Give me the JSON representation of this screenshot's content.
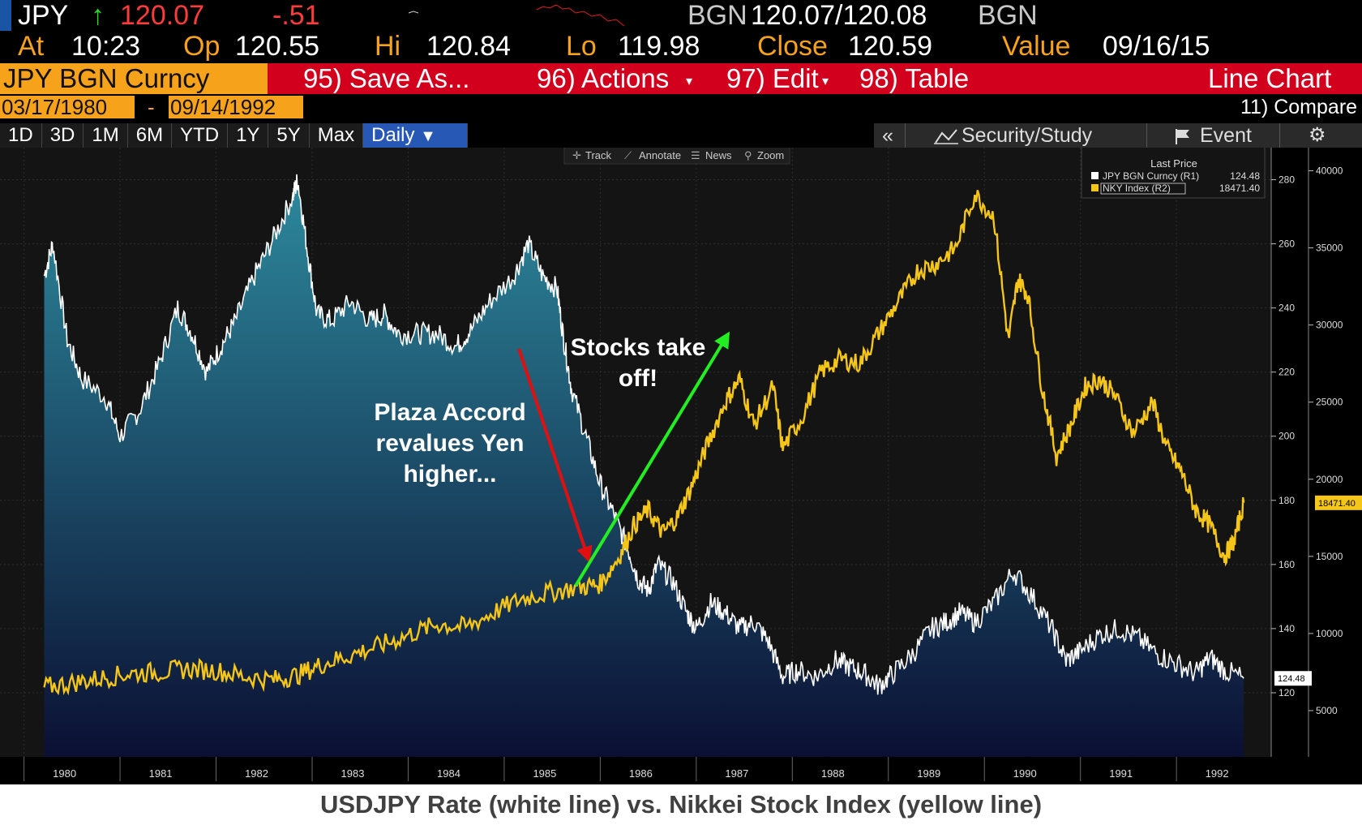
{
  "header": {
    "ticker": "JPY",
    "arrow": "↑",
    "last": "120.07",
    "change": "-.51",
    "bgn_label": "BGN",
    "bid_ask": "120.07/120.08",
    "bgn_label2": "BGN",
    "at_label": "At",
    "at_time": "10:23",
    "op_label": "Op",
    "op_value": "120.55",
    "hi_label": "Hi",
    "hi_value": "120.84",
    "lo_label": "Lo",
    "lo_value": "119.98",
    "close_label": "Close",
    "close_value": "120.59",
    "value_label": "Value",
    "value_date": "09/16/15"
  },
  "toolbar": {
    "security": "JPY BGN Curncy",
    "save_as": "95) Save As...",
    "actions": "96) Actions",
    "edit": "97) Edit",
    "table": "98) Table",
    "chart_type": "Line Chart"
  },
  "range": {
    "start": "03/17/1980",
    "dash": "-",
    "end": "09/14/1992",
    "compare": "11) Compare"
  },
  "tabs": [
    "1D",
    "3D",
    "1M",
    "6M",
    "YTD",
    "1Y",
    "5Y",
    "Max"
  ],
  "period": "Daily",
  "panel": {
    "collapse": "«",
    "security_study": "Security/Study",
    "event": "Event"
  },
  "tools": {
    "track": "Track",
    "annotate": "Annotate",
    "news": "News",
    "zoom": "Zoom"
  },
  "legend": {
    "title": "Last Price",
    "items": [
      {
        "name": "JPY BGN Curncy  (R1)",
        "value": "124.48",
        "color": "#ffffff"
      },
      {
        "name": "NKY Index  (R2)",
        "value": "18471.40",
        "color": "#f5c518"
      }
    ]
  },
  "annotations": {
    "plaza": [
      "Plaza Accord",
      "revalues Yen",
      "higher..."
    ],
    "stocks": [
      "Stocks take",
      "off!"
    ]
  },
  "caption": "USDJPY Rate (white line) vs. Nikkei Stock Index (yellow line)",
  "colors": {
    "jpy_line": "#ffffff",
    "nky_line": "#f5c518",
    "area_top": "#2d8a9e",
    "area_bottom": "#0b1033",
    "plaza_arrow": "#e01010",
    "stocks_arrow": "#22ee22"
  },
  "chart_data": {
    "type": "line",
    "x_ticks": [
      "1980",
      "1981",
      "1982",
      "1983",
      "1984",
      "1985",
      "1986",
      "1987",
      "1988",
      "1989",
      "1990",
      "1991",
      "1992"
    ],
    "r1_ticks": [
      "280",
      "260",
      "240",
      "220",
      "200",
      "180",
      "160",
      "140",
      "120"
    ],
    "r2_ticks": [
      "40000",
      "35000",
      "30000",
      "25000",
      "20000",
      "15000",
      "10000",
      "5000"
    ],
    "r1_range": [
      100,
      290
    ],
    "r2_range": [
      2000,
      41500
    ],
    "last_labels": {
      "jpy": "124.48",
      "nky": "18471.40"
    },
    "series": [
      {
        "name": "JPY BGN Curncy",
        "axis": "R1",
        "points": [
          [
            1980.21,
            250
          ],
          [
            1980.3,
            260
          ],
          [
            1980.45,
            230
          ],
          [
            1980.6,
            218
          ],
          [
            1980.85,
            212
          ],
          [
            1981.0,
            200
          ],
          [
            1981.2,
            208
          ],
          [
            1981.4,
            222
          ],
          [
            1981.6,
            240
          ],
          [
            1981.75,
            232
          ],
          [
            1981.9,
            220
          ],
          [
            1982.05,
            228
          ],
          [
            1982.2,
            236
          ],
          [
            1982.4,
            250
          ],
          [
            1982.6,
            262
          ],
          [
            1982.8,
            275
          ],
          [
            1982.85,
            280
          ],
          [
            1982.95,
            258
          ],
          [
            1983.05,
            238
          ],
          [
            1983.2,
            236
          ],
          [
            1983.4,
            242
          ],
          [
            1983.6,
            236
          ],
          [
            1983.75,
            238
          ],
          [
            1983.9,
            232
          ],
          [
            1984.1,
            232
          ],
          [
            1984.3,
            232
          ],
          [
            1984.5,
            228
          ],
          [
            1984.65,
            233
          ],
          [
            1984.85,
            242
          ],
          [
            1985.1,
            250
          ],
          [
            1985.25,
            260
          ],
          [
            1985.4,
            250
          ],
          [
            1985.55,
            246
          ],
          [
            1985.62,
            230
          ],
          [
            1985.7,
            215
          ],
          [
            1985.85,
            200
          ],
          [
            1986.0,
            185
          ],
          [
            1986.15,
            175
          ],
          [
            1986.3,
            164
          ],
          [
            1986.4,
            155
          ],
          [
            1986.5,
            152
          ],
          [
            1986.6,
            160
          ],
          [
            1986.75,
            155
          ],
          [
            1986.9,
            145
          ],
          [
            1987.0,
            140
          ],
          [
            1987.15,
            148
          ],
          [
            1987.3,
            145
          ],
          [
            1987.45,
            140
          ],
          [
            1987.6,
            142
          ],
          [
            1987.75,
            136
          ],
          [
            1987.9,
            125
          ],
          [
            1988.05,
            127
          ],
          [
            1988.25,
            125
          ],
          [
            1988.45,
            130
          ],
          [
            1988.6,
            128
          ],
          [
            1988.75,
            126
          ],
          [
            1988.9,
            122
          ],
          [
            1989.05,
            126
          ],
          [
            1989.25,
            132
          ],
          [
            1989.45,
            140
          ],
          [
            1989.6,
            142
          ],
          [
            1989.75,
            145
          ],
          [
            1989.9,
            142
          ],
          [
            1990.1,
            148
          ],
          [
            1990.3,
            158
          ],
          [
            1990.5,
            150
          ],
          [
            1990.7,
            140
          ],
          [
            1990.85,
            130
          ],
          [
            1991.0,
            133
          ],
          [
            1991.2,
            138
          ],
          [
            1991.4,
            140
          ],
          [
            1991.6,
            137
          ],
          [
            1991.8,
            132
          ],
          [
            1992.0,
            129
          ],
          [
            1992.2,
            126
          ],
          [
            1992.35,
            131
          ],
          [
            1992.5,
            127
          ],
          [
            1992.7,
            124.48
          ]
        ]
      },
      {
        "name": "NKY Index",
        "axis": "R2",
        "points": [
          [
            1980.21,
            6500
          ],
          [
            1980.5,
            6800
          ],
          [
            1980.8,
            7100
          ],
          [
            1981.1,
            7400
          ],
          [
            1981.4,
            7500
          ],
          [
            1981.7,
            7700
          ],
          [
            1982.0,
            7600
          ],
          [
            1982.3,
            7200
          ],
          [
            1982.6,
            7000
          ],
          [
            1982.85,
            7300
          ],
          [
            1983.1,
            8000
          ],
          [
            1983.4,
            8600
          ],
          [
            1983.7,
            9200
          ],
          [
            1984.0,
            9900
          ],
          [
            1984.3,
            10600
          ],
          [
            1984.6,
            10400
          ],
          [
            1984.9,
            11400
          ],
          [
            1985.2,
            12300
          ],
          [
            1985.5,
            12700
          ],
          [
            1985.8,
            13000
          ],
          [
            1986.0,
            13200
          ],
          [
            1986.2,
            15000
          ],
          [
            1986.35,
            17000
          ],
          [
            1986.5,
            18000
          ],
          [
            1986.65,
            16500
          ],
          [
            1986.8,
            17500
          ],
          [
            1986.95,
            19500
          ],
          [
            1987.1,
            22000
          ],
          [
            1987.3,
            25000
          ],
          [
            1987.45,
            26500
          ],
          [
            1987.6,
            23500
          ],
          [
            1987.8,
            26000
          ],
          [
            1987.9,
            22000
          ],
          [
            1988.1,
            24000
          ],
          [
            1988.3,
            27000
          ],
          [
            1988.5,
            27800
          ],
          [
            1988.7,
            27500
          ],
          [
            1988.9,
            29500
          ],
          [
            1989.1,
            31500
          ],
          [
            1989.3,
            33500
          ],
          [
            1989.5,
            34000
          ],
          [
            1989.7,
            35000
          ],
          [
            1989.9,
            38500
          ],
          [
            1990.1,
            37000
          ],
          [
            1990.25,
            29000
          ],
          [
            1990.35,
            33000
          ],
          [
            1990.45,
            32000
          ],
          [
            1990.6,
            26000
          ],
          [
            1990.75,
            21500
          ],
          [
            1990.9,
            23500
          ],
          [
            1991.05,
            26000
          ],
          [
            1991.2,
            26500
          ],
          [
            1991.35,
            25500
          ],
          [
            1991.55,
            23000
          ],
          [
            1991.75,
            25000
          ],
          [
            1991.9,
            22000
          ],
          [
            1992.05,
            20500
          ],
          [
            1992.2,
            18000
          ],
          [
            1992.35,
            17000
          ],
          [
            1992.5,
            15000
          ],
          [
            1992.6,
            16000
          ],
          [
            1992.7,
            18471.4
          ]
        ]
      }
    ]
  }
}
